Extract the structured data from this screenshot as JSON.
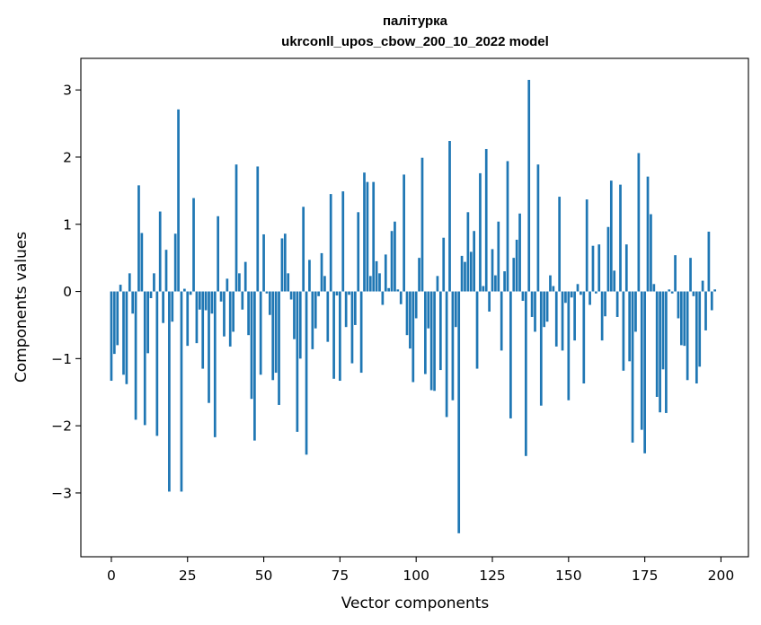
{
  "chart_data": {
    "type": "bar",
    "title": "палітурка",
    "subtitle": "ukrconll_upos_cbow_200_10_2022 model",
    "xlabel": "Vector components",
    "ylabel": "Components values",
    "xlim": [
      -10,
      209
    ],
    "ylim": [
      -3.95,
      3.47
    ],
    "xticks": [
      0,
      25,
      50,
      75,
      100,
      125,
      150,
      175,
      200
    ],
    "yticks": [
      -3,
      -2,
      -1,
      0,
      1,
      2,
      3
    ],
    "ytick_labels": [
      "−3",
      "−2",
      "−1",
      "0",
      "1",
      "2",
      "3"
    ],
    "grid": false,
    "series": [
      {
        "name": "палітурка",
        "color": "#1f77b4",
        "values": [
          -1.33,
          -0.93,
          -0.8,
          0.1,
          -1.24,
          -1.38,
          0.27,
          -0.33,
          -1.91,
          1.58,
          0.87,
          -1.99,
          -0.92,
          -0.1,
          0.27,
          -2.15,
          1.19,
          -0.47,
          0.62,
          -2.98,
          -0.45,
          0.86,
          2.71,
          -2.98,
          0.04,
          -0.81,
          -0.05,
          1.39,
          -0.77,
          -0.27,
          -1.15,
          -0.28,
          -1.66,
          -0.33,
          -2.17,
          1.12,
          -0.15,
          -0.67,
          0.19,
          -0.82,
          -0.6,
          1.89,
          0.27,
          -0.27,
          0.44,
          -0.65,
          -1.6,
          -2.22,
          1.86,
          -1.24,
          0.85,
          -0.03,
          -0.35,
          -1.32,
          -1.21,
          -1.69,
          0.79,
          0.86,
          0.27,
          -0.12,
          -0.71,
          -2.09,
          -1.0,
          1.26,
          -2.43,
          0.47,
          -0.86,
          -0.55,
          -0.07,
          0.57,
          0.23,
          -0.75,
          1.45,
          -1.3,
          -0.06,
          -1.33,
          1.49,
          -0.53,
          -0.05,
          -1.07,
          -0.5,
          1.18,
          -1.21,
          1.77,
          1.63,
          0.23,
          1.63,
          0.45,
          0.27,
          -0.2,
          0.55,
          0.05,
          0.9,
          1.04,
          0.03,
          -0.19,
          1.74,
          -0.65,
          -0.85,
          -1.35,
          -0.4,
          0.5,
          1.99,
          -1.23,
          -0.55,
          -1.47,
          -1.48,
          0.23,
          -1.17,
          0.8,
          -1.87,
          2.24,
          -1.62,
          -0.53,
          -3.6,
          0.53,
          0.44,
          1.18,
          0.59,
          0.9,
          -1.15,
          1.76,
          0.08,
          2.12,
          -0.3,
          0.63,
          0.24,
          1.04,
          -0.88,
          0.3,
          1.94,
          -1.89,
          0.5,
          0.77,
          1.16,
          -0.14,
          -2.45,
          3.15,
          -0.38,
          -0.6,
          1.89,
          -1.7,
          -0.53,
          -0.45,
          0.24,
          0.08,
          -0.82,
          1.41,
          -0.88,
          -0.17,
          -1.62,
          -0.09,
          -0.73,
          0.11,
          -0.05,
          -1.37,
          1.37,
          -0.2,
          0.68,
          -0.03,
          0.7,
          -0.73,
          -0.37,
          0.96,
          1.65,
          0.31,
          -0.38,
          1.59,
          -1.18,
          0.7,
          -1.04,
          -2.25,
          -0.6,
          2.06,
          -2.06,
          -2.41,
          1.71,
          1.15,
          0.11,
          -1.57,
          -1.8,
          -1.16,
          -1.81,
          0.03,
          -0.03,
          0.54,
          -0.4,
          -0.8,
          -0.81,
          -1.32,
          0.5,
          -0.07,
          -1.37,
          -1.12,
          0.16,
          -0.58,
          0.89,
          -0.28,
          0.03
        ]
      }
    ]
  }
}
